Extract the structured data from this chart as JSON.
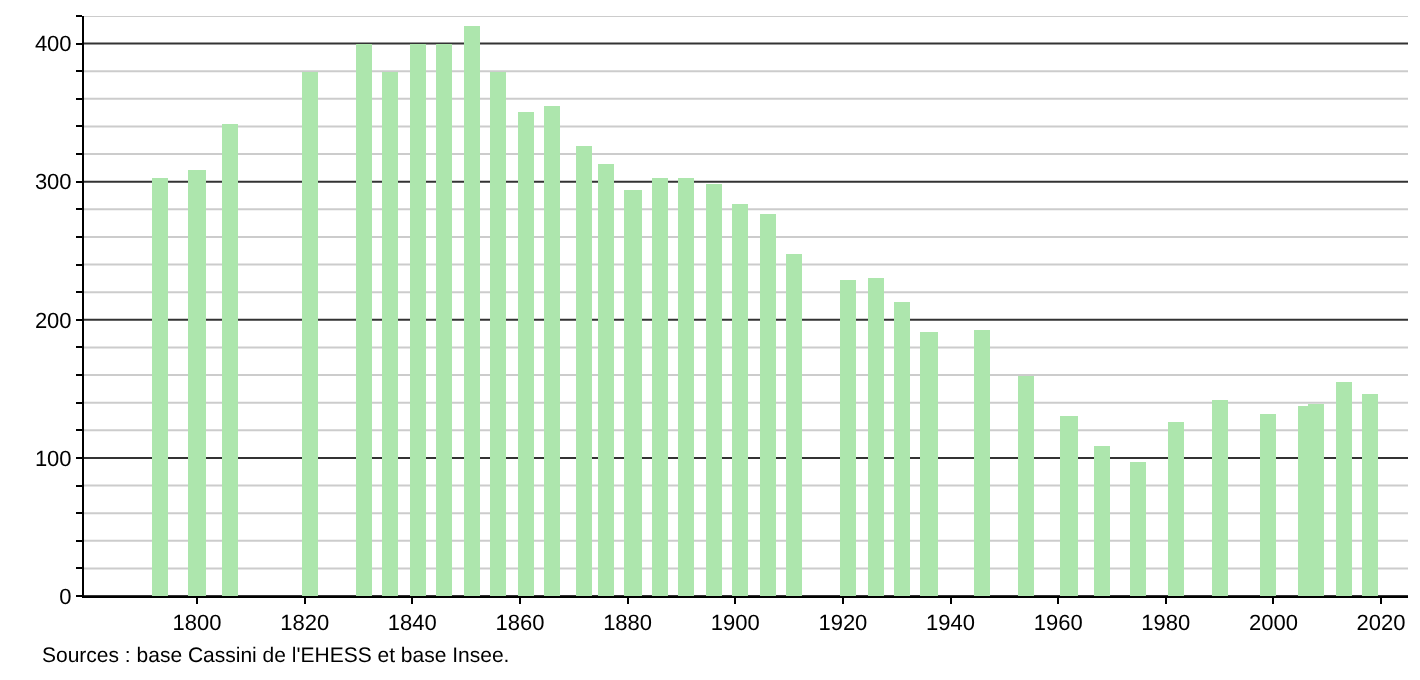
{
  "chart_data": {
    "type": "bar",
    "color": "#ade6ad",
    "x": [
      1793,
      1800,
      1806,
      1821,
      1831,
      1836,
      1841,
      1846,
      1851,
      1856,
      1861,
      1866,
      1872,
      1876,
      1881,
      1886,
      1891,
      1896,
      1901,
      1906,
      1911,
      1921,
      1926,
      1931,
      1936,
      1946,
      1954,
      1962,
      1968,
      1975,
      1982,
      1990,
      1999,
      2006,
      2008,
      2013,
      2018
    ],
    "values": [
      302,
      308,
      342,
      379,
      400,
      379,
      400,
      400,
      413,
      379,
      351,
      355,
      326,
      313,
      294,
      302,
      303,
      298,
      284,
      277,
      248,
      229,
      231,
      213,
      191,
      192,
      159,
      131,
      108,
      97,
      126,
      142,
      132,
      137,
      139,
      155,
      147
    ],
    "xlim": [
      1779,
      2025
    ],
    "xticks": [
      1800,
      1820,
      1840,
      1860,
      1880,
      1900,
      1920,
      1940,
      1960,
      1980,
      2000,
      2020
    ],
    "ylim": [
      0,
      420
    ],
    "yticks": [
      0,
      {
        "value": 20,
        "label": null
      },
      {
        "value": 40,
        "label": null
      },
      {
        "value": 60,
        "label": null
      },
      {
        "value": 80,
        "label": null
      },
      100,
      {
        "value": 120,
        "label": null
      },
      {
        "value": 140,
        "label": null
      },
      {
        "value": 160,
        "label": null
      },
      {
        "value": 180,
        "label": null
      },
      200,
      {
        "value": 220,
        "label": null
      },
      {
        "value": 240,
        "label": null
      },
      {
        "value": 260,
        "label": null
      },
      {
        "value": 280,
        "label": null
      },
      300,
      {
        "value": 320,
        "label": null
      },
      {
        "value": 340,
        "label": null
      },
      {
        "value": 360,
        "label": null
      },
      {
        "value": 380,
        "label": null
      },
      400,
      {
        "value": 420,
        "label": null
      }
    ],
    "grid": "y",
    "annotations": [
      "Sources : base Cassini de l'EHESS et base Insee."
    ]
  }
}
